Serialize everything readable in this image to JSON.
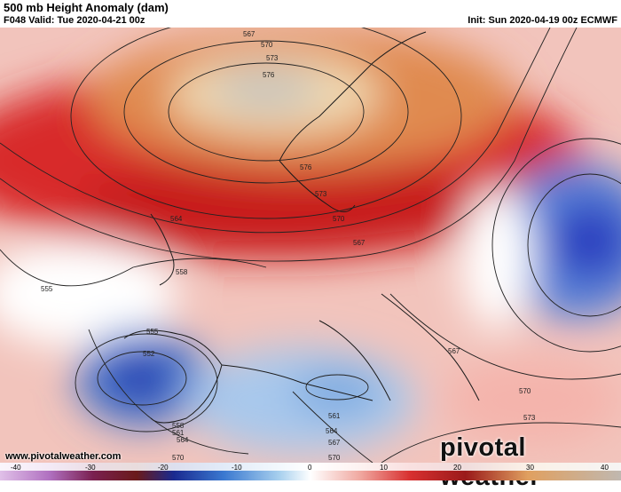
{
  "header": {
    "title": "500 mb Height Anomaly (dam)",
    "valid": "F048 Valid: Tue 2020-04-21 00z",
    "init": "Init: Sun 2020-04-19 00z ECMWF"
  },
  "map": {
    "contour_labels": [
      "567",
      "570",
      "573",
      "576",
      "576",
      "573",
      "570",
      "567",
      "564",
      "558",
      "555",
      "555",
      "552",
      "558",
      "561",
      "564",
      "570",
      "561",
      "564",
      "567",
      "570",
      "567",
      "570",
      "573"
    ]
  },
  "footer": {
    "site": "www.pivotalweather.com",
    "brand": "pivotal weather"
  },
  "legend": {
    "ticks": [
      "-40",
      "-30",
      "-20",
      "-10",
      "0",
      "10",
      "20",
      "30",
      "40"
    ],
    "colors": [
      "#c8a0d8",
      "#8a3a8a",
      "#6a1a3a",
      "#2040a0",
      "#3a78d0",
      "#9fc8ec",
      "#ffffff",
      "#f0b0a8",
      "#d83030",
      "#9a1a1a",
      "#e0a060",
      "#c8c0b0"
    ]
  }
}
